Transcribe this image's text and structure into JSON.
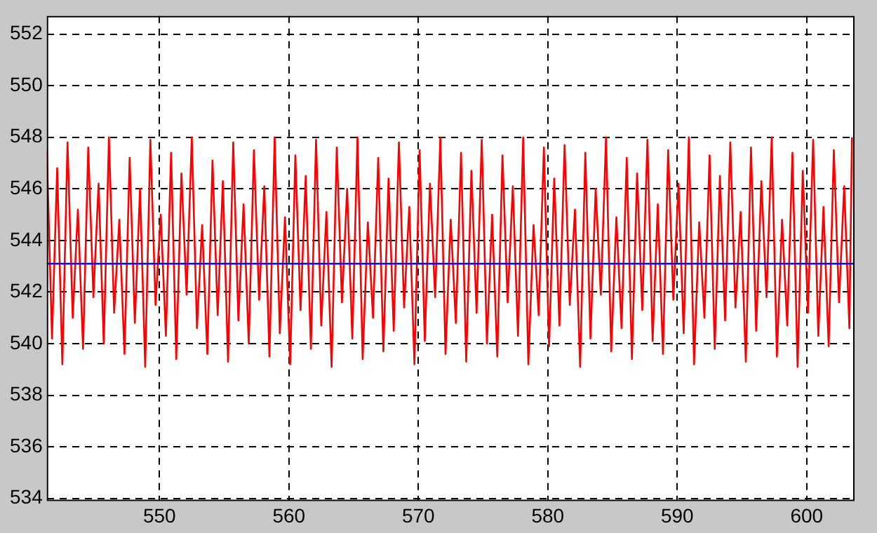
{
  "chart_data": {
    "type": "line",
    "x": [
      541.3,
      541.7,
      542.1,
      542.5,
      542.9,
      543.3,
      543.7,
      544.1,
      544.5,
      544.9,
      545.3,
      545.7,
      546.1,
      546.5,
      546.9,
      547.3,
      547.7,
      548.1,
      548.5,
      548.9,
      549.3,
      549.7,
      550.1,
      550.5,
      550.9,
      551.3,
      551.7,
      552.1,
      552.5,
      552.9,
      553.3,
      553.7,
      554.1,
      554.5,
      554.9,
      555.3,
      555.7,
      556.1,
      556.5,
      556.9,
      557.3,
      557.7,
      558.1,
      558.5,
      558.9,
      559.3,
      559.7,
      560.1,
      560.5,
      560.9,
      561.3,
      561.7,
      562.1,
      562.5,
      562.9,
      563.3,
      563.7,
      564.1,
      564.5,
      564.9,
      565.3,
      565.7,
      566.1,
      566.5,
      566.9,
      567.3,
      567.7,
      568.1,
      568.5,
      568.9,
      569.3,
      569.7,
      570.1,
      570.5,
      570.9,
      571.3,
      571.7,
      572.1,
      572.5,
      572.9,
      573.3,
      573.7,
      574.1,
      574.5,
      574.9,
      575.3,
      575.7,
      576.1,
      576.5,
      576.9,
      577.3,
      577.7,
      578.1,
      578.5,
      578.9,
      579.3,
      579.7,
      580.1,
      580.5,
      580.9,
      581.3,
      581.7,
      582.1,
      582.5,
      582.9,
      583.3,
      583.7,
      584.1,
      584.5,
      584.9,
      585.3,
      585.7,
      586.1,
      586.5,
      586.9,
      587.3,
      587.7,
      588.1,
      588.5,
      588.9,
      589.3,
      589.7,
      590.1,
      590.5,
      590.9,
      591.3,
      591.7,
      592.1,
      592.5,
      592.9,
      593.3,
      593.7,
      594.1,
      594.5,
      594.9,
      595.3,
      595.7,
      596.1,
      596.5,
      596.9,
      597.3,
      597.7,
      598.1,
      598.5,
      598.9,
      599.3,
      599.7,
      600.1,
      600.5,
      600.9,
      601.3,
      601.7,
      602.1,
      602.5,
      602.9,
      603.3,
      603.5
    ],
    "series": [
      {
        "color": "#ff0000",
        "values": [
          547.5,
          540.2,
          546.8,
          539.2,
          547.8,
          541.0,
          545.2,
          539.8,
          547.6,
          541.8,
          546.2,
          540.0,
          548.0,
          541.2,
          544.8,
          539.6,
          547.2,
          540.8,
          546.0,
          539.1,
          547.9,
          541.5,
          545.0,
          540.3,
          547.4,
          539.4,
          546.6,
          541.9,
          548.0,
          540.6,
          544.6,
          539.6,
          547.1,
          541.1,
          546.3,
          539.3,
          547.8,
          540.9,
          545.4,
          540.0,
          547.5,
          541.7,
          546.1,
          539.5,
          548.0,
          540.4,
          544.9,
          539.2,
          547.3,
          541.3,
          546.5,
          539.8,
          547.9,
          540.7,
          545.1,
          539.1,
          547.6,
          541.6,
          546.0,
          540.2,
          548.0,
          539.4,
          544.7,
          541.0,
          547.2,
          539.7,
          546.4,
          540.5,
          547.8,
          541.4,
          545.3,
          539.2,
          547.5,
          540.1,
          546.2,
          541.8,
          548.0,
          539.6,
          544.8,
          540.8,
          547.4,
          539.3,
          546.7,
          541.2,
          547.9,
          540.0,
          545.0,
          539.5,
          547.3,
          541.6,
          546.1,
          540.3,
          548.0,
          539.2,
          544.6,
          541.1,
          547.6,
          539.9,
          546.4,
          540.7,
          547.7,
          541.5,
          545.2,
          539.1,
          547.4,
          540.2,
          546.0,
          541.9,
          548.0,
          539.7,
          544.9,
          540.6,
          547.2,
          539.4,
          546.6,
          541.3,
          547.9,
          540.1,
          545.4,
          539.6,
          547.5,
          541.7,
          546.2,
          540.4,
          548.0,
          539.2,
          544.7,
          541.0,
          547.3,
          539.8,
          546.5,
          540.9,
          547.8,
          541.4,
          545.1,
          539.3,
          547.6,
          540.5,
          546.3,
          541.8,
          548.0,
          539.5,
          544.8,
          540.7,
          547.4,
          539.1,
          546.7,
          541.2,
          547.9,
          540.3,
          545.3,
          539.9,
          547.5,
          541.6,
          546.1,
          540.6,
          548.0
        ]
      }
    ],
    "ref_lines": [
      {
        "axis": "y",
        "value": 543.1,
        "color": "#0000ff"
      }
    ],
    "xlim": [
      541.3,
      603.7
    ],
    "xticks": [
      550,
      560,
      570,
      580,
      590,
      600
    ],
    "ylim": [
      533.9,
      552.7
    ],
    "yticks": [
      534,
      536,
      538,
      540,
      542,
      544,
      546,
      548,
      550,
      552
    ],
    "grid": true,
    "legend": false,
    "marker": "none",
    "line_style": "solid"
  }
}
